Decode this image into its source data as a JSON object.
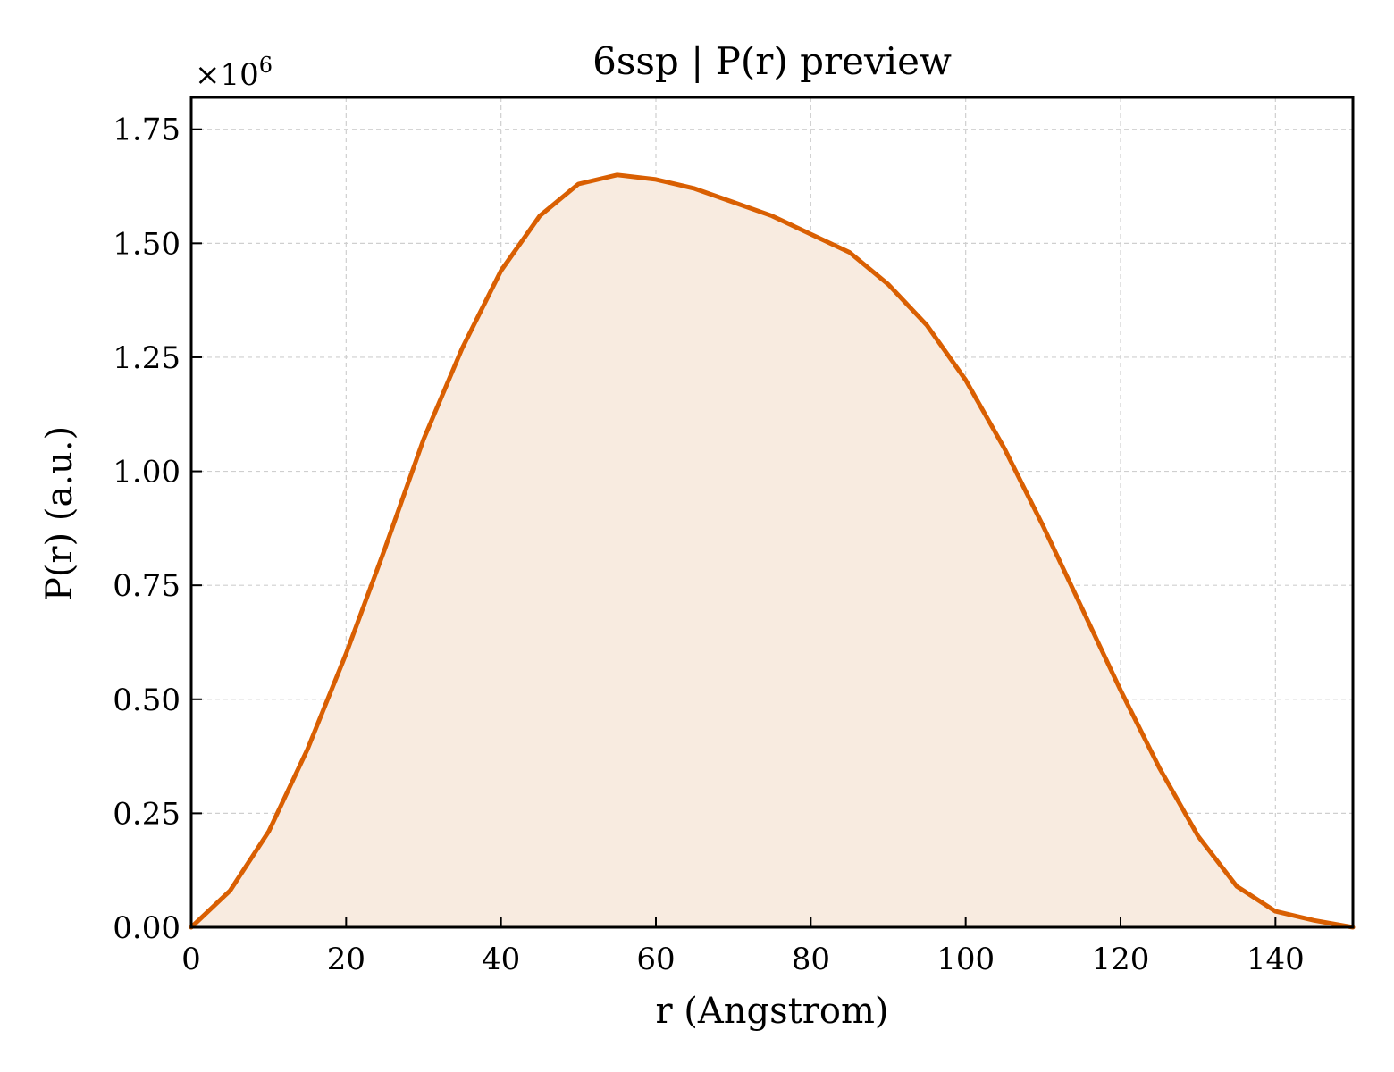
{
  "chart_data": {
    "type": "area",
    "title": "6ssp | P(r) preview",
    "xlabel": "r (Angstrom)",
    "ylabel": "P(r) (a.u.)",
    "y_offset_label": {
      "base": "×10",
      "exponent": "6"
    },
    "xlim": [
      0,
      150
    ],
    "ylim": [
      0,
      1.82
    ],
    "y_multiplier": 1000000,
    "xticks": [
      0,
      20,
      40,
      60,
      80,
      100,
      120,
      140
    ],
    "xtick_labels": [
      "0",
      "20",
      "40",
      "60",
      "80",
      "100",
      "120",
      "140"
    ],
    "yticks": [
      0,
      0.25,
      0.5,
      0.75,
      1.0,
      1.25,
      1.5,
      1.75
    ],
    "ytick_labels": [
      "0.00",
      "0.25",
      "0.50",
      "0.75",
      "1.00",
      "1.25",
      "1.50",
      "1.75"
    ],
    "grid": true,
    "series": [
      {
        "color": "#d95f02",
        "fill_color": "#f8ebe0",
        "x": [
          0,
          5,
          10,
          15,
          20,
          25,
          30,
          35,
          40,
          45,
          50,
          55,
          60,
          65,
          70,
          75,
          80,
          85,
          90,
          95,
          100,
          105,
          110,
          115,
          120,
          125,
          130,
          135,
          140,
          145,
          150
        ],
        "y": [
          0.0,
          0.08,
          0.21,
          0.39,
          0.6,
          0.83,
          1.07,
          1.27,
          1.44,
          1.56,
          1.63,
          1.65,
          1.64,
          1.62,
          1.59,
          1.56,
          1.52,
          1.48,
          1.41,
          1.32,
          1.2,
          1.05,
          0.88,
          0.7,
          0.52,
          0.35,
          0.2,
          0.09,
          0.035,
          0.015,
          0.0
        ]
      }
    ]
  }
}
